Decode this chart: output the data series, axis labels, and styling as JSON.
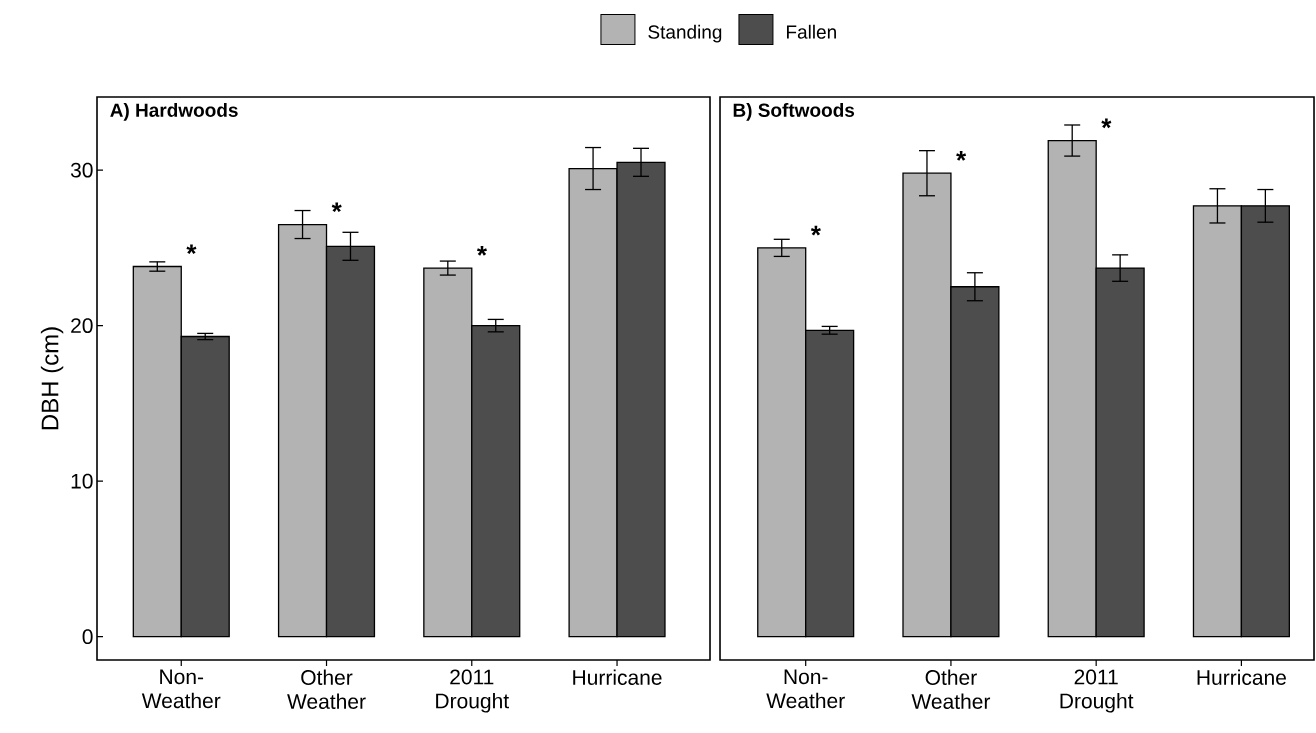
{
  "chart_data": [
    {
      "type": "bar",
      "title": "A) Hardwoods",
      "ylabel": "DBH (cm)",
      "categories": [
        "Non-Weather",
        "Other Weather",
        "2011 Drought",
        "Hurricane"
      ],
      "series": [
        {
          "name": "Standing",
          "color": "#b3b3b3",
          "values": [
            23.8,
            26.5,
            23.7,
            30.1
          ],
          "errors": [
            0.3,
            0.9,
            0.45,
            1.35
          ]
        },
        {
          "name": "Fallen",
          "color": "#4d4d4d",
          "values": [
            19.3,
            25.1,
            20.0,
            30.5
          ],
          "errors": [
            0.2,
            0.9,
            0.4,
            0.9
          ]
        }
      ],
      "ylim": [
        -1.5,
        34.7
      ],
      "yticks": [
        0,
        10,
        20,
        30
      ],
      "grid": false,
      "legend": "top",
      "annotations": [
        {
          "text": "*",
          "x": "Non-Weather",
          "y": 23.8
        },
        {
          "text": "*",
          "x": "Other Weather",
          "y": 26.5
        },
        {
          "text": "*",
          "x": "2011 Drought",
          "y": 23.7
        }
      ]
    },
    {
      "type": "bar",
      "title": "B) Softwoods",
      "categories": [
        "Non-Weather",
        "Other Weather",
        "2011 Drought",
        "Hurricane"
      ],
      "series": [
        {
          "color": "#b3b3b3",
          "values": [
            25.0,
            29.8,
            31.9,
            27.7
          ],
          "errors": [
            0.55,
            1.45,
            1.0,
            1.1
          ]
        },
        {
          "color": "#4d4d4d",
          "values": [
            19.7,
            22.5,
            23.7,
            27.7
          ],
          "errors": [
            0.25,
            0.9,
            0.85,
            1.05
          ]
        }
      ],
      "ylim": [
        -1.5,
        34.7
      ],
      "tick_labels": "x",
      "grid": false,
      "annotations": [
        {
          "text": "*",
          "x": "Non-Weather",
          "y": 25.0
        },
        {
          "text": "*",
          "x": "Other Weather",
          "y": 29.8
        },
        {
          "text": "*",
          "x": "2011 Drought",
          "y": 31.9
        }
      ]
    }
  ]
}
